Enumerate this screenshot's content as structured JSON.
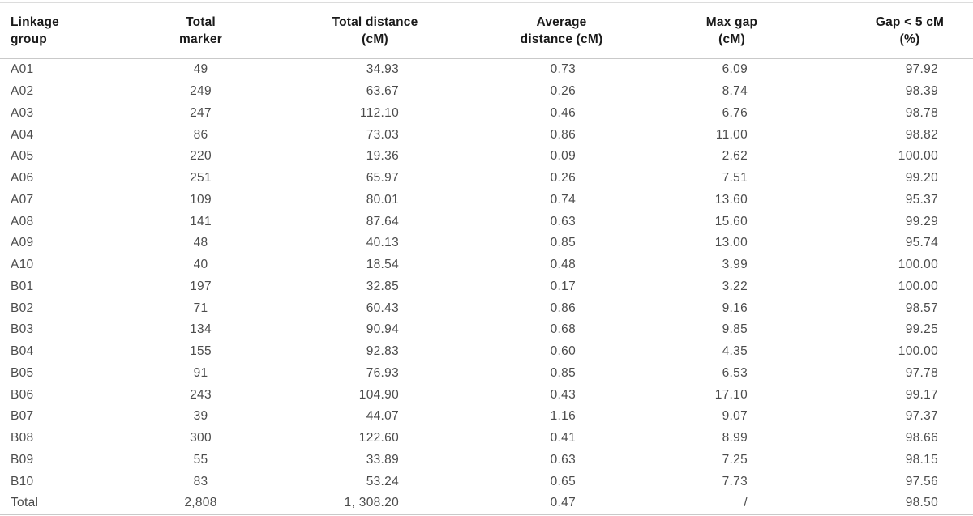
{
  "colors": {
    "background": "#ffffff",
    "header_text": "#1a1a1a",
    "body_text": "#4c4c4c",
    "rule": "#c9c9c9",
    "rule_light": "#dcdcdc"
  },
  "table": {
    "columns": [
      {
        "key": "linkage_group",
        "label_line1": "Linkage",
        "label_line2": "group"
      },
      {
        "key": "total_marker",
        "label_line1": "Total",
        "label_line2": "marker"
      },
      {
        "key": "total_distance",
        "label_line1": "Total distance",
        "label_line2": "(cM)"
      },
      {
        "key": "average_distance",
        "label_line1": "Average",
        "label_line2": "distance (cM)"
      },
      {
        "key": "max_gap",
        "label_line1": "Max gap",
        "label_line2": "(cM)"
      },
      {
        "key": "gap_lt5",
        "label_line1": "Gap < 5 cM",
        "label_line2": "(%)"
      }
    ],
    "rows": [
      {
        "linkage_group": "A01",
        "total_marker": "49",
        "total_distance": "34.93",
        "average_distance": "0.73",
        "max_gap": "6.09",
        "gap_lt5": "97.92"
      },
      {
        "linkage_group": "A02",
        "total_marker": "249",
        "total_distance": "63.67",
        "average_distance": "0.26",
        "max_gap": "8.74",
        "gap_lt5": "98.39"
      },
      {
        "linkage_group": "A03",
        "total_marker": "247",
        "total_distance": "112.10",
        "average_distance": "0.46",
        "max_gap": "6.76",
        "gap_lt5": "98.78"
      },
      {
        "linkage_group": "A04",
        "total_marker": "86",
        "total_distance": "73.03",
        "average_distance": "0.86",
        "max_gap": "11.00",
        "gap_lt5": "98.82"
      },
      {
        "linkage_group": "A05",
        "total_marker": "220",
        "total_distance": "19.36",
        "average_distance": "0.09",
        "max_gap": "2.62",
        "gap_lt5": "100.00"
      },
      {
        "linkage_group": "A06",
        "total_marker": "251",
        "total_distance": "65.97",
        "average_distance": "0.26",
        "max_gap": "7.51",
        "gap_lt5": "99.20"
      },
      {
        "linkage_group": "A07",
        "total_marker": "109",
        "total_distance": "80.01",
        "average_distance": "0.74",
        "max_gap": "13.60",
        "gap_lt5": "95.37"
      },
      {
        "linkage_group": "A08",
        "total_marker": "141",
        "total_distance": "87.64",
        "average_distance": "0.63",
        "max_gap": "15.60",
        "gap_lt5": "99.29"
      },
      {
        "linkage_group": "A09",
        "total_marker": "48",
        "total_distance": "40.13",
        "average_distance": "0.85",
        "max_gap": "13.00",
        "gap_lt5": "95.74"
      },
      {
        "linkage_group": "A10",
        "total_marker": "40",
        "total_distance": "18.54",
        "average_distance": "0.48",
        "max_gap": "3.99",
        "gap_lt5": "100.00"
      },
      {
        "linkage_group": "B01",
        "total_marker": "197",
        "total_distance": "32.85",
        "average_distance": "0.17",
        "max_gap": "3.22",
        "gap_lt5": "100.00"
      },
      {
        "linkage_group": "B02",
        "total_marker": "71",
        "total_distance": "60.43",
        "average_distance": "0.86",
        "max_gap": "9.16",
        "gap_lt5": "98.57"
      },
      {
        "linkage_group": "B03",
        "total_marker": "134",
        "total_distance": "90.94",
        "average_distance": "0.68",
        "max_gap": "9.85",
        "gap_lt5": "99.25"
      },
      {
        "linkage_group": "B04",
        "total_marker": "155",
        "total_distance": "92.83",
        "average_distance": "0.60",
        "max_gap": "4.35",
        "gap_lt5": "100.00"
      },
      {
        "linkage_group": "B05",
        "total_marker": "91",
        "total_distance": "76.93",
        "average_distance": "0.85",
        "max_gap": "6.53",
        "gap_lt5": "97.78"
      },
      {
        "linkage_group": "B06",
        "total_marker": "243",
        "total_distance": "104.90",
        "average_distance": "0.43",
        "max_gap": "17.10",
        "gap_lt5": "99.17"
      },
      {
        "linkage_group": "B07",
        "total_marker": "39",
        "total_distance": "44.07",
        "average_distance": "1.16",
        "max_gap": "9.07",
        "gap_lt5": "97.37"
      },
      {
        "linkage_group": "B08",
        "total_marker": "300",
        "total_distance": "122.60",
        "average_distance": "0.41",
        "max_gap": "8.99",
        "gap_lt5": "98.66"
      },
      {
        "linkage_group": "B09",
        "total_marker": "55",
        "total_distance": "33.89",
        "average_distance": "0.63",
        "max_gap": "7.25",
        "gap_lt5": "98.15"
      },
      {
        "linkage_group": "B10",
        "total_marker": "83",
        "total_distance": "53.24",
        "average_distance": "0.65",
        "max_gap": "7.73",
        "gap_lt5": "97.56"
      }
    ],
    "total_row": {
      "linkage_group": "Total",
      "total_marker": "2,808",
      "total_distance": "1, 308.20",
      "average_distance": "0.47",
      "max_gap": "/",
      "gap_lt5": "98.50"
    }
  }
}
